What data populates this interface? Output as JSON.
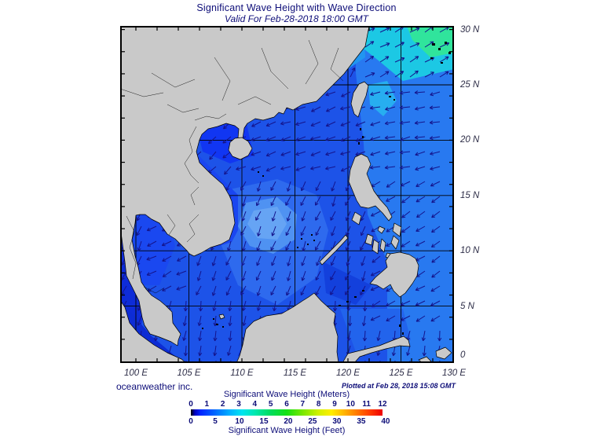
{
  "header": {
    "title": "Significant Wave Height with Wave Direction",
    "subtitle": "Valid For Feb-28-2018 18:00 GMT"
  },
  "axes": {
    "lat_ticks": [
      {
        "label": "30 N",
        "lat": 30
      },
      {
        "label": "25 N",
        "lat": 25
      },
      {
        "label": "20 N",
        "lat": 20
      },
      {
        "label": "15 N",
        "lat": 15
      },
      {
        "label": "10 N",
        "lat": 10
      },
      {
        "label": "5 N",
        "lat": 5
      },
      {
        "label": "0",
        "lat": 0
      }
    ],
    "lon_ticks": [
      {
        "label": "100 E",
        "lon": 100
      },
      {
        "label": "105 E",
        "lon": 105
      },
      {
        "label": "110 E",
        "lon": 110
      },
      {
        "label": "115 E",
        "lon": 115
      },
      {
        "label": "120 E",
        "lon": 120
      },
      {
        "label": "125 E",
        "lon": 125
      },
      {
        "label": "130 E",
        "lon": 130
      }
    ]
  },
  "footer": {
    "credit": "oceanweather inc.",
    "plotted": "Plotted at Feb 28, 2018 15:08 GMT"
  },
  "legend": {
    "meters_label": "Significant Wave Height (Meters)",
    "meters_ticks": [
      0,
      1,
      2,
      3,
      4,
      5,
      6,
      7,
      8,
      9,
      10,
      11,
      12
    ],
    "feet_label": "Significant Wave Height (Feet)",
    "feet_ticks": [
      0,
      5,
      10,
      15,
      20,
      25,
      30,
      35,
      40
    ],
    "meters_max": 12,
    "feet_per_meter": 3.28084,
    "colormap": [
      {
        "v": 0.0,
        "c": "#000000"
      },
      {
        "v": 0.25,
        "c": "#0000c0"
      },
      {
        "v": 0.6,
        "c": "#0024ff"
      },
      {
        "v": 1.5,
        "c": "#0066ff"
      },
      {
        "v": 2.5,
        "c": "#00b4ff"
      },
      {
        "v": 3.2,
        "c": "#00e4f0"
      },
      {
        "v": 4.0,
        "c": "#00e8b0"
      },
      {
        "v": 5.0,
        "c": "#00dc5c"
      },
      {
        "v": 6.0,
        "c": "#14e014"
      },
      {
        "v": 7.0,
        "c": "#78e800"
      },
      {
        "v": 8.0,
        "c": "#d2f000"
      },
      {
        "v": 8.8,
        "c": "#ffee00"
      },
      {
        "v": 9.6,
        "c": "#ffb400"
      },
      {
        "v": 10.4,
        "c": "#ff7800"
      },
      {
        "v": 11.2,
        "c": "#ff3c00"
      },
      {
        "v": 12.0,
        "c": "#ee0000"
      }
    ]
  },
  "colors": {
    "text_accent": "#0d0d78",
    "ocean_base": "#1d53e8",
    "land": "#c9c9c9",
    "arrow": "#14148c",
    "grid": "#000000"
  }
}
